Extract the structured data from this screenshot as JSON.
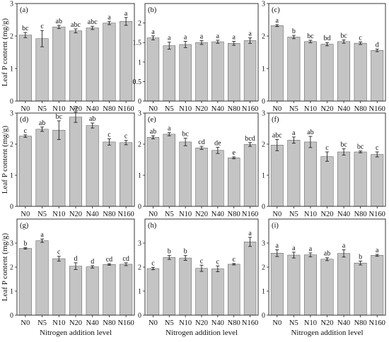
{
  "y_axis_title": "Leaf P content  (mg/g)",
  "x_axis_title": "Nitrogen addition level",
  "bar_color": "#c4c4c4",
  "chart_data": [
    {
      "type": "bar",
      "panel": "(a)",
      "categories": [
        "N0",
        "N5",
        "N10",
        "N20",
        "N40",
        "N80",
        "N160"
      ],
      "values": [
        2.03,
        1.92,
        2.28,
        2.16,
        2.25,
        2.4,
        2.45
      ],
      "errors": [
        0.08,
        0.25,
        0.05,
        0.06,
        0.05,
        0.05,
        0.12
      ],
      "letters": [
        "bc",
        "c",
        "ab",
        "abc",
        "abc",
        "a",
        "a"
      ],
      "ylim": [
        0,
        3
      ],
      "yticks": [
        0,
        1,
        2,
        3
      ],
      "xlabel": "",
      "ylabel": "Leaf P content  (mg/g)"
    },
    {
      "type": "bar",
      "panel": "(b)",
      "categories": [
        "N0",
        "N5",
        "N10",
        "N20",
        "N40",
        "N80",
        "N160"
      ],
      "values": [
        1.62,
        1.42,
        1.45,
        1.5,
        1.52,
        1.48,
        1.55
      ],
      "errors": [
        0.05,
        0.09,
        0.08,
        0.05,
        0.04,
        0.05,
        0.07
      ],
      "letters": [
        "a",
        "a",
        "a",
        "a",
        "a",
        "a",
        "a"
      ],
      "ylim": [
        0,
        2.5
      ],
      "yticks": [
        0,
        0.5,
        1.0,
        1.5,
        2.0
      ],
      "xlabel": "",
      "ylabel": ""
    },
    {
      "type": "bar",
      "panel": "(c)",
      "categories": [
        "N0",
        "N5",
        "N10",
        "N20",
        "N40",
        "N80",
        "N160"
      ],
      "values": [
        2.32,
        1.97,
        1.83,
        1.75,
        1.83,
        1.78,
        1.56
      ],
      "errors": [
        0.03,
        0.05,
        0.04,
        0.05,
        0.05,
        0.04,
        0.04
      ],
      "letters": [
        "a",
        "b",
        "bc",
        "bd",
        "bc",
        "c",
        "d"
      ],
      "ylim": [
        0,
        3
      ],
      "yticks": [
        0,
        1,
        2,
        3
      ],
      "xlabel": "",
      "ylabel": ""
    },
    {
      "type": "bar",
      "panel": "(d)",
      "categories": [
        "N0",
        "N5",
        "N10",
        "N20",
        "N40",
        "N80",
        "N160"
      ],
      "values": [
        2.26,
        2.48,
        2.45,
        2.87,
        2.6,
        2.07,
        2.05
      ],
      "errors": [
        0.04,
        0.07,
        0.3,
        0.17,
        0.08,
        0.1,
        0.07
      ],
      "letters": [
        "c",
        "ab",
        "bc",
        "a",
        "ab",
        "c",
        "c"
      ],
      "ylim": [
        0,
        3
      ],
      "yticks": [
        0,
        1,
        2,
        3
      ],
      "xlabel": "",
      "ylabel": "Leaf P content  (mg/g)"
    },
    {
      "type": "bar",
      "panel": "(e)",
      "categories": [
        "N0",
        "N5",
        "N10",
        "N20",
        "N40",
        "N80",
        "N160"
      ],
      "values": [
        2.22,
        2.32,
        2.07,
        1.88,
        1.8,
        1.56,
        1.99
      ],
      "errors": [
        0.05,
        0.05,
        0.12,
        0.05,
        0.1,
        0.03,
        0.06
      ],
      "letters": [
        "ab",
        "a",
        "bc",
        "cd",
        "de",
        "e",
        "bcd"
      ],
      "ylim": [
        0,
        3
      ],
      "yticks": [
        0,
        1,
        2,
        3
      ],
      "xlabel": "",
      "ylabel": ""
    },
    {
      "type": "bar",
      "panel": "(f)",
      "categories": [
        "N0",
        "N5",
        "N10",
        "N20",
        "N40",
        "N80",
        "N160"
      ],
      "values": [
        1.97,
        2.13,
        2.07,
        1.6,
        1.75,
        1.75,
        1.67
      ],
      "errors": [
        0.18,
        0.1,
        0.18,
        0.15,
        0.1,
        0.03,
        0.08
      ],
      "letters": [
        "abc",
        "a",
        "ab",
        "c",
        "bc",
        "bc",
        "c"
      ],
      "ylim": [
        0,
        3
      ],
      "yticks": [
        0,
        1,
        2,
        3
      ],
      "xlabel": "",
      "ylabel": ""
    },
    {
      "type": "bar",
      "panel": "(g)",
      "categories": [
        "N0",
        "N5",
        "N10",
        "N20",
        "N40",
        "N80",
        "N160"
      ],
      "values": [
        2.78,
        3.1,
        2.35,
        2.04,
        2.01,
        2.11,
        2.12
      ],
      "errors": [
        0.03,
        0.07,
        0.1,
        0.14,
        0.05,
        0.03,
        0.06
      ],
      "letters": [
        "b",
        "a",
        "c",
        "d",
        "d",
        "cd",
        "cd"
      ],
      "ylim": [
        0,
        4
      ],
      "yticks": [
        0,
        1,
        2,
        3
      ],
      "xlabel": "Nitrogen addition level",
      "ylabel": "Leaf P content  (mg/g)"
    },
    {
      "type": "bar",
      "panel": "(h)",
      "categories": [
        "N0",
        "N5",
        "N10",
        "N20",
        "N40",
        "N80",
        "N160"
      ],
      "values": [
        1.94,
        2.4,
        2.38,
        1.95,
        1.93,
        2.12,
        3.05
      ],
      "errors": [
        0.05,
        0.08,
        0.1,
        0.13,
        0.12,
        0.03,
        0.19
      ],
      "letters": [
        "c",
        "b",
        "b",
        "c",
        "c",
        "c",
        "a"
      ],
      "ylim": [
        0,
        4
      ],
      "yticks": [
        0,
        1,
        2,
        3
      ],
      "xlabel": "Nitrogen addition level",
      "ylabel": ""
    },
    {
      "type": "bar",
      "panel": "(i)",
      "categories": [
        "N0",
        "N5",
        "N10",
        "N20",
        "N40",
        "N80",
        "N160"
      ],
      "values": [
        2.58,
        2.5,
        2.51,
        2.33,
        2.57,
        2.17,
        2.49
      ],
      "errors": [
        0.14,
        0.12,
        0.08,
        0.06,
        0.15,
        0.08,
        0.04
      ],
      "letters": [
        "a",
        "a",
        "a",
        "ab",
        "a",
        "b",
        "a"
      ],
      "ylim": [
        0,
        4
      ],
      "yticks": [
        0,
        1,
        2,
        3
      ],
      "xlabel": "Nitrogen addition level",
      "ylabel": ""
    }
  ]
}
